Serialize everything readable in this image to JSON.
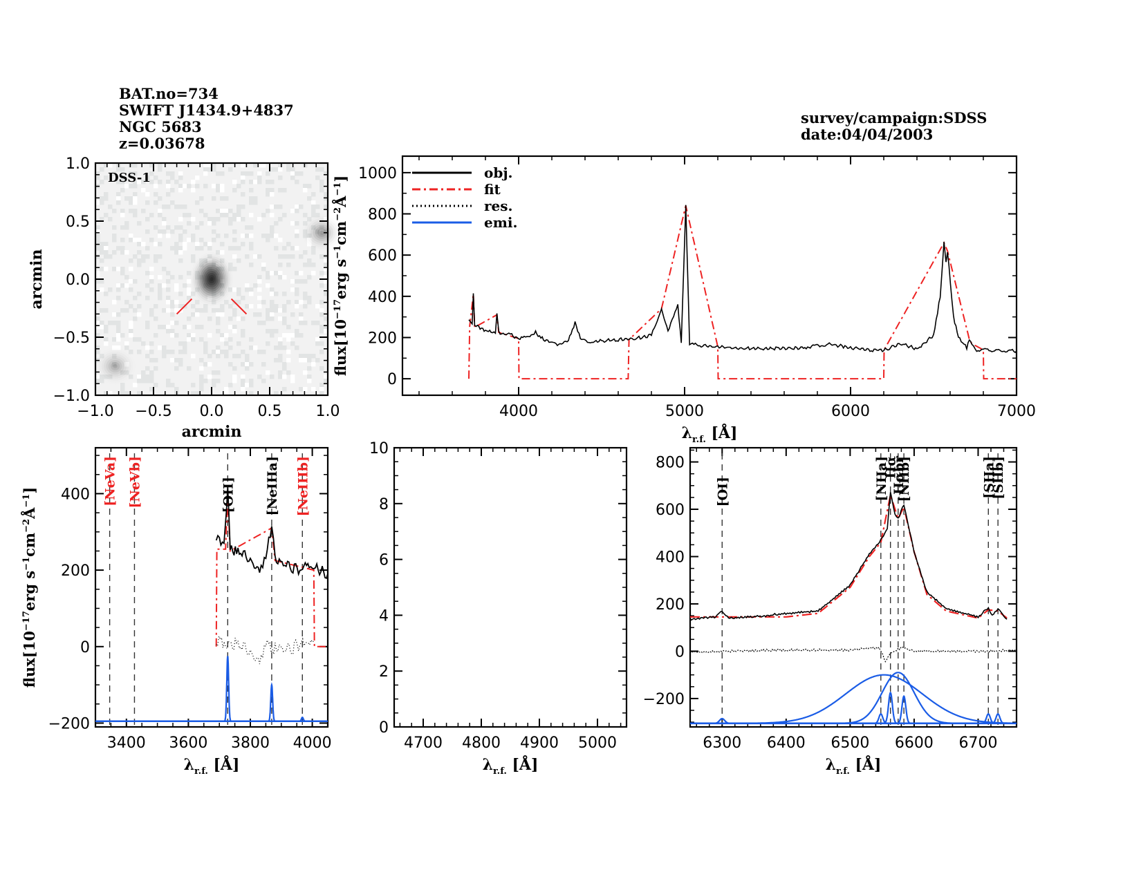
{
  "header": {
    "left_lines": [
      "BAT.no=734",
      "SWIFT J1434.9+4837",
      "NGC 5683",
      "z=0.03678"
    ],
    "right_lines": [
      "survey/campaign:SDSS",
      "date:04/04/2003"
    ]
  },
  "colors": {
    "obj": "#000000",
    "fit": "#ee2222",
    "res": "#000000",
    "emi": "#1a5ce6",
    "marker": "#ee2222"
  },
  "chart_data": [
    {
      "id": "image-panel",
      "type": "heatmap",
      "title": "",
      "label": "DSS-1",
      "xlabel": "arcmin",
      "ylabel": "arcmin",
      "xlim": [
        -1.0,
        1.0
      ],
      "ylim": [
        -1.0,
        1.0
      ],
      "xticks": [
        "-1.0",
        "-0.5",
        "0.0",
        "0.5",
        "1.0"
      ],
      "yticks": [
        "-1.0",
        "-0.5",
        "0.0",
        "0.5",
        "1.0"
      ],
      "sources": [
        {
          "x": 0.0,
          "y": 0.0,
          "brightness": 1.0,
          "desc": "target galaxy"
        },
        {
          "x": 0.95,
          "y": 0.4,
          "brightness": 0.35,
          "desc": "extended source at edge"
        },
        {
          "x": -0.83,
          "y": -0.75,
          "brightness": 0.25,
          "desc": "faint source"
        }
      ],
      "markers": [
        {
          "from": [
            -0.17,
            -0.17
          ],
          "to": [
            -0.3,
            -0.3
          ]
        },
        {
          "from": [
            0.17,
            -0.17
          ],
          "to": [
            0.3,
            -0.3
          ]
        }
      ]
    },
    {
      "id": "full-spectrum",
      "type": "line",
      "xlabel": "λr.f. [Å]",
      "ylabel": "flux[10^-17 erg s^-1 cm^-2 Å^-1]",
      "xlim": [
        3300,
        7000
      ],
      "ylim": [
        -80,
        1080
      ],
      "xticks": [
        "4000",
        "5000",
        "6000",
        "7000"
      ],
      "yticks": [
        "0",
        "200",
        "400",
        "600",
        "800",
        "1000"
      ],
      "legend": [
        "obj.",
        "fit",
        "res.",
        "emi."
      ],
      "legend_position": "top-left",
      "series": [
        {
          "name": "obj.",
          "x": [
            3700,
            3720,
            3727,
            3735,
            3760,
            3800,
            3860,
            3869,
            3880,
            3950,
            4000,
            4050,
            4102,
            4150,
            4250,
            4300,
            4340,
            4380,
            4450,
            4600,
            4700,
            4800,
            4861,
            4900,
            4959,
            4980,
            5007,
            5030,
            5100,
            5200,
            5300,
            5400,
            5500,
            5700,
            5880,
            6000,
            6100,
            6200,
            6300,
            6400,
            6500,
            6540,
            6563,
            6575,
            6584,
            6620,
            6650,
            6700,
            6716,
            6731,
            6760,
            7000
          ],
          "y": [
            280,
            270,
            410,
            260,
            250,
            235,
            220,
            320,
            225,
            215,
            195,
            205,
            225,
            190,
            165,
            190,
            270,
            185,
            180,
            190,
            195,
            210,
            340,
            230,
            360,
            175,
            840,
            170,
            160,
            155,
            150,
            148,
            145,
            150,
            168,
            150,
            140,
            138,
            170,
            145,
            210,
            400,
            660,
            560,
            620,
            300,
            200,
            150,
            190,
            170,
            140,
            135
          ]
        },
        {
          "name": "fit",
          "x": [
            3700,
            3705,
            3727,
            3735,
            3869,
            3880,
            4000,
            4002,
            4660,
            4665,
            4861,
            5007,
            5200,
            5202,
            6200,
            6202,
            6563,
            6584,
            6716,
            6731,
            6800,
            6802,
            7000
          ],
          "y": [
            0,
            255,
            410,
            250,
            310,
            225,
            195,
            0,
            0,
            190,
            340,
            840,
            155,
            0,
            0,
            140,
            660,
            620,
            190,
            170,
            140,
            0,
            0
          ]
        }
      ]
    },
    {
      "id": "neon-oxygen-zoom",
      "type": "line",
      "xlabel": "λr.f. [Å]",
      "ylabel": "flux[10^-17 erg s^-1 cm^-2 Å^-1]",
      "xlim": [
        3300,
        4050
      ],
      "ylim": [
        -210,
        520
      ],
      "xticks": [
        "3400",
        "3600",
        "3800",
        "4000"
      ],
      "yticks": [
        "-200",
        "0",
        "200",
        "400"
      ],
      "line_markers": [
        {
          "label": "[NeVa]",
          "wavelength": 3346,
          "color": "red"
        },
        {
          "label": "[NeVb]",
          "wavelength": 3426,
          "color": "red"
        },
        {
          "label": "[OII]",
          "wavelength": 3727,
          "color": "black"
        },
        {
          "label": "[NeIIIa]",
          "wavelength": 3869,
          "color": "black"
        },
        {
          "label": "[NeIIIb]",
          "wavelength": 3968,
          "color": "red"
        }
      ],
      "series": [
        {
          "name": "obj.",
          "x": [
            3690,
            3700,
            3715,
            3727,
            3735,
            3760,
            3800,
            3830,
            3850,
            3869,
            3880,
            3920,
            3960,
            3990,
            4010,
            4050
          ],
          "y": [
            285,
            275,
            270,
            410,
            255,
            250,
            230,
            190,
            230,
            320,
            225,
            210,
            200,
            210,
            205,
            190
          ]
        },
        {
          "name": "fit",
          "x": [
            3690,
            3692,
            3720,
            3727,
            3735,
            3869,
            3880,
            4005,
            4007,
            4050
          ],
          "y": [
            0,
            255,
            255,
            395,
            250,
            310,
            225,
            200,
            0,
            0
          ]
        },
        {
          "name": "res.",
          "x": [
            3690,
            3720,
            3760,
            3800,
            3830,
            3850,
            3880,
            3920,
            3960,
            4005
          ],
          "y": [
            15,
            10,
            5,
            -10,
            -50,
            0,
            -5,
            -10,
            5,
            15
          ]
        },
        {
          "name": "emi.",
          "lines": [
            {
              "center": 3727,
              "peak": 170
            },
            {
              "center": 3869,
              "peak": 95
            },
            {
              "center": 3968,
              "peak": 10
            }
          ],
          "baseline": -195
        }
      ]
    },
    {
      "id": "hbeta-zoom",
      "type": "line",
      "xlabel": "λr.f. [Å]",
      "ylabel": "",
      "xlim": [
        4650,
        5050
      ],
      "ylim": [
        0,
        10
      ],
      "xticks": [
        "4700",
        "4800",
        "4900",
        "5000"
      ],
      "yticks": [
        "0",
        "2",
        "4",
        "6",
        "8",
        "10"
      ],
      "series": []
    },
    {
      "id": "halpha-zoom",
      "type": "line",
      "xlabel": "λr.f. [Å]",
      "ylabel": "",
      "xlim": [
        6250,
        6760
      ],
      "ylim": [
        -320,
        860
      ],
      "xticks": [
        "6300",
        "6400",
        "6500",
        "6600",
        "6700"
      ],
      "yticks": [
        "-200",
        "0",
        "200",
        "400",
        "600",
        "800"
      ],
      "line_markers": [
        {
          "label": "[OI]",
          "wavelength": 6300,
          "color": "black"
        },
        {
          "label": "[NIIa]",
          "wavelength": 6548,
          "color": "black"
        },
        {
          "label": "Hα",
          "wavelength": 6563,
          "color": "black"
        },
        {
          "label": "Hαbr",
          "wavelength": 6575,
          "color": "black"
        },
        {
          "label": "[NIIb]",
          "wavelength": 6584,
          "color": "black"
        },
        {
          "label": "[SIIa]",
          "wavelength": 6716,
          "color": "black"
        },
        {
          "label": "[SIIb]",
          "wavelength": 6731,
          "color": "black"
        }
      ],
      "series": [
        {
          "name": "obj.",
          "x": [
            6250,
            6290,
            6300,
            6310,
            6370,
            6380,
            6450,
            6500,
            6530,
            6548,
            6558,
            6563,
            6570,
            6575,
            6584,
            6600,
            6620,
            6650,
            6700,
            6716,
            6722,
            6731,
            6745
          ],
          "y": [
            135,
            145,
            170,
            140,
            150,
            155,
            170,
            280,
            410,
            470,
            520,
            670,
            580,
            560,
            620,
            420,
            250,
            180,
            145,
            185,
            150,
            180,
            135
          ]
        },
        {
          "name": "fit",
          "x": [
            6250,
            6300,
            6400,
            6450,
            6500,
            6530,
            6548,
            6563,
            6575,
            6584,
            6600,
            6620,
            6650,
            6700,
            6716,
            6731,
            6745
          ],
          "y": [
            145,
            145,
            145,
            160,
            270,
            400,
            460,
            660,
            560,
            610,
            420,
            240,
            170,
            140,
            175,
            170,
            140
          ]
        },
        {
          "name": "res.",
          "x": [
            6250,
            6300,
            6400,
            6500,
            6545,
            6555,
            6563,
            6575,
            6584,
            6600,
            6700,
            6760
          ],
          "y": [
            -5,
            0,
            5,
            5,
            15,
            -40,
            -10,
            10,
            15,
            0,
            0,
            5
          ]
        },
        {
          "name": "emi.",
          "baseline": -305,
          "lines": [
            {
              "center": 6300,
              "sigma": 4,
              "peak": 20
            },
            {
              "center": 6548,
              "sigma": 3,
              "peak": 40
            },
            {
              "center": 6563,
              "sigma": 3,
              "peak": 130
            },
            {
              "center": 6584,
              "sigma": 3,
              "peak": 115
            },
            {
              "center": 6716,
              "sigma": 3,
              "peak": 40
            },
            {
              "center": 6731,
              "sigma": 3,
              "peak": 40
            },
            {
              "center": 6553,
              "sigma": 60,
              "peak": 205
            },
            {
              "center": 6575,
              "sigma": 25,
              "peak": 215
            }
          ]
        }
      ]
    }
  ]
}
